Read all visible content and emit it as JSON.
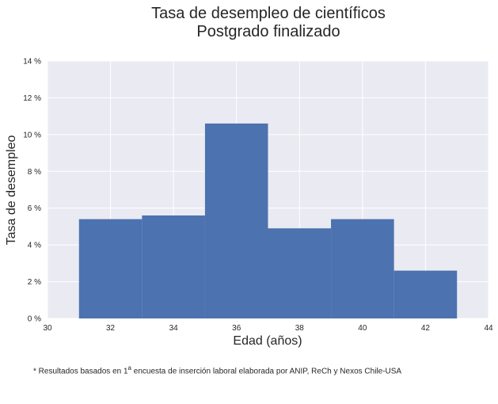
{
  "chart_data": {
    "type": "bar",
    "title_line1": "Tasa de desempleo de científicos",
    "title_line2": "Postgrado finalizado",
    "xlabel": "Edad (años)",
    "ylabel": "Tasa de desempleo",
    "xlim": [
      30,
      44
    ],
    "ylim": [
      0,
      14
    ],
    "x_ticks": [
      30,
      32,
      34,
      36,
      38,
      40,
      42,
      44
    ],
    "y_ticks": [
      0,
      2,
      4,
      6,
      8,
      10,
      12,
      14
    ],
    "y_tick_labels": [
      "0 %",
      "2 %",
      "4 %",
      "6 %",
      "8 %",
      "10 %",
      "12 %",
      "14 %"
    ],
    "bins": [
      {
        "start": 31,
        "end": 33,
        "value": 5.4
      },
      {
        "start": 33,
        "end": 35,
        "value": 5.6
      },
      {
        "start": 35,
        "end": 37,
        "value": 10.6
      },
      {
        "start": 37,
        "end": 39,
        "value": 4.9
      },
      {
        "start": 39,
        "end": 41,
        "value": 5.4
      },
      {
        "start": 41,
        "end": 43,
        "value": 2.6
      }
    ],
    "grid": true,
    "colors": {
      "bar": "#4c72b0",
      "background": "#eaeaf2",
      "grid": "#ffffff"
    }
  },
  "footnote": {
    "prefix": "* Resultados basados en 1",
    "superscript": "a",
    "suffix": " encuesta de inserción laboral elaborada por ANIP, ReCh y Nexos Chile-USA"
  }
}
